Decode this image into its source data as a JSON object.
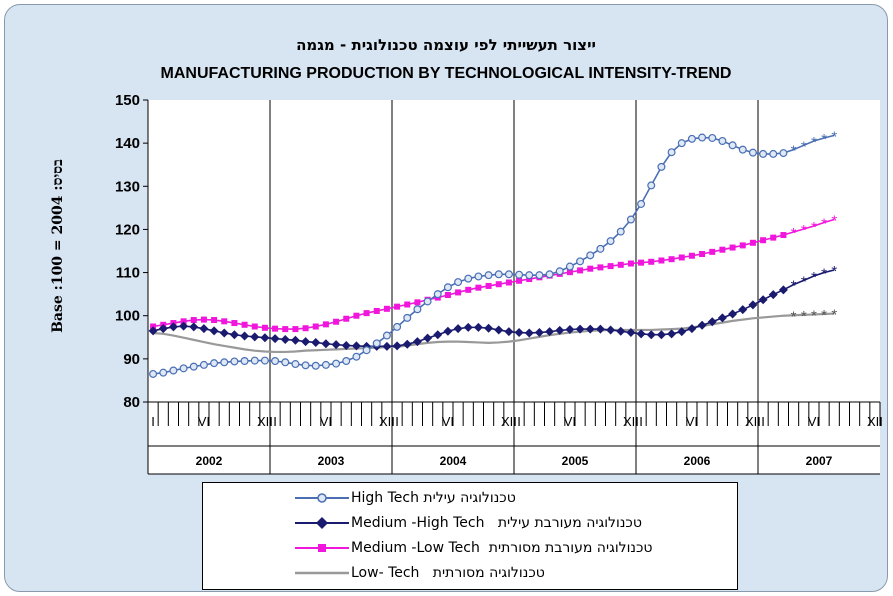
{
  "chart_data": {
    "type": "line",
    "title": "ייצור תעשייתי לפי עוצמה טכנולוגית - מגמה",
    "subtitle": "MANUFACTURING PRODUCTION BY TECHNOLOGICAL INTENSITY-TREND",
    "ylabel": "Base :100 = 2004 :בסיס",
    "ylim": [
      80,
      150
    ],
    "yticks": [
      "80",
      "90",
      "100",
      "110",
      "120",
      "130",
      "140",
      "150"
    ],
    "years": [
      "2002",
      "2003",
      "2004",
      "2005",
      "2006",
      "2007"
    ],
    "month_marks": [
      "I",
      "VI",
      "XII"
    ],
    "grid": "vertical year separators",
    "legend_position": "bottom",
    "x_start": "2002-01",
    "x_step": "monthly",
    "series": [
      {
        "name": "טכנולוגיה עילית High Tech",
        "color": "#4a6fb5",
        "marker": "circle",
        "values": [
          86.5,
          86.8,
          87.3,
          87.8,
          88.2,
          88.6,
          89.0,
          89.2,
          89.4,
          89.5,
          89.6,
          89.6,
          89.5,
          89.2,
          88.8,
          88.5,
          88.4,
          88.6,
          88.9,
          89.5,
          90.5,
          92,
          93.6,
          95.4,
          97.4,
          99.5,
          101.5,
          103.3,
          105,
          106.6,
          107.8,
          108.6,
          109.1,
          109.4,
          109.6,
          109.6,
          109.5,
          109.4,
          109.4,
          109.6,
          110.3,
          111.4,
          112.6,
          114,
          115.5,
          117.3,
          119.5,
          122.3,
          125.9,
          130.2,
          134.5,
          137.9,
          140,
          141,
          141.3,
          141.2,
          140.5,
          139.5,
          138.5,
          137.8,
          137.5,
          137.5,
          137.7,
          138.5,
          139.5,
          140.5,
          141.2,
          141.8
        ],
        "projected_from": 63
      },
      {
        "name": "Medium -High Tech   טכנולוגיה מעורבת עילית",
        "color": "#1a1a6e",
        "marker": "diamond",
        "values": [
          96.5,
          97,
          97.4,
          97.6,
          97.4,
          97,
          96.5,
          96,
          95.6,
          95.3,
          95.1,
          94.9,
          94.7,
          94.5,
          94.3,
          94,
          93.8,
          93.5,
          93.3,
          93.1,
          93,
          92.9,
          92.9,
          92.9,
          93,
          93.4,
          94,
          94.8,
          95.6,
          96.4,
          97,
          97.3,
          97.3,
          97.1,
          96.7,
          96.3,
          96.1,
          96,
          96.1,
          96.3,
          96.6,
          96.8,
          96.9,
          96.9,
          96.9,
          96.7,
          96.4,
          96.1,
          95.8,
          95.6,
          95.6,
          95.8,
          96.3,
          97,
          97.8,
          98.6,
          99.5,
          100.4,
          101.4,
          102.5,
          103.7,
          104.9,
          106,
          107.2,
          108.2,
          109.2,
          110,
          110.6
        ],
        "projected_from": 63
      },
      {
        "name": "Medium -Low Tech  טכנולוגיה מעורבת מסורתית",
        "color": "#f016dc",
        "marker": "square",
        "values": [
          97.5,
          97.9,
          98.3,
          98.7,
          99,
          99.1,
          99,
          98.7,
          98.3,
          97.9,
          97.5,
          97.2,
          97,
          96.9,
          96.9,
          97.1,
          97.5,
          98,
          98.6,
          99.3,
          100,
          100.6,
          101.1,
          101.6,
          102.1,
          102.6,
          103.1,
          103.7,
          104.2,
          104.8,
          105.4,
          106,
          106.5,
          106.9,
          107.3,
          107.7,
          108.1,
          108.5,
          108.9,
          109.3,
          109.7,
          110.1,
          110.5,
          110.9,
          111.2,
          111.5,
          111.8,
          112.1,
          112.3,
          112.5,
          112.8,
          113.1,
          113.5,
          113.9,
          114.3,
          114.8,
          115.3,
          115.8,
          116.3,
          116.9,
          117.5,
          118.1,
          118.7,
          119.4,
          120.1,
          120.8,
          121.6,
          122.3
        ],
        "projected_from": 63
      },
      {
        "name": "Low- Tech   טכנולוגיה מסורתית",
        "color": "#999999",
        "marker": "none",
        "values": [
          96,
          95.8,
          95.4,
          94.9,
          94.4,
          93.9,
          93.4,
          93,
          92.6,
          92.2,
          91.9,
          91.7,
          91.6,
          91.6,
          91.7,
          91.9,
          92,
          92.1,
          92.2,
          92.3,
          92.4,
          92.5,
          92.6,
          92.7,
          92.8,
          93.1,
          93.4,
          93.7,
          93.9,
          94,
          94,
          93.9,
          93.8,
          93.7,
          93.8,
          94,
          94.3,
          94.7,
          95.1,
          95.5,
          95.8,
          96.1,
          96.3,
          96.5,
          96.6,
          96.7,
          96.7,
          96.7,
          96.7,
          96.7,
          96.8,
          96.9,
          97,
          97.3,
          97.6,
          98,
          98.4,
          98.8,
          99.1,
          99.4,
          99.6,
          99.8,
          100,
          100.1,
          100.2,
          100.3,
          100.4,
          100.5
        ],
        "projected_from": 63
      }
    ]
  }
}
